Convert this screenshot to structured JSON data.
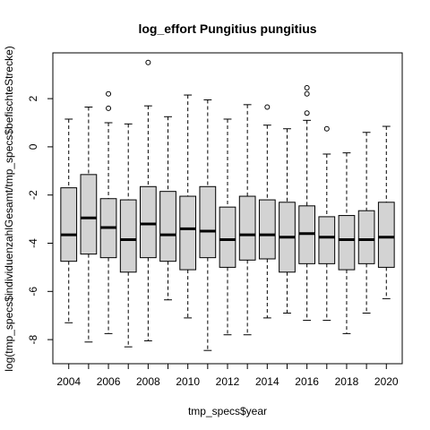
{
  "chart_data": {
    "type": "boxplot",
    "title": "log_effort Pungitius pungitius",
    "xlabel": "tmp_specs$year",
    "ylabel": "log(tmp_specs$individuenzahlGesamt/tmp_specs$befischteStrecke)",
    "categories": [
      "2004",
      "2005",
      "2006",
      "2007",
      "2008",
      "2009",
      "2010",
      "2011",
      "2012",
      "2013",
      "2014",
      "2015",
      "2016",
      "2017",
      "2018",
      "2019",
      "2020"
    ],
    "x_tick_labels": [
      "2004",
      "2006",
      "2008",
      "2010",
      "2012",
      "2014",
      "2016",
      "2018",
      "2020"
    ],
    "y_ticks": [
      -8,
      -6,
      -4,
      -2,
      0,
      2
    ],
    "ylim": [
      -9.0,
      3.9
    ],
    "box_color": "#d3d3d3",
    "boxes": [
      {
        "year": "2004",
        "whisker_low": -7.3,
        "q1": -4.75,
        "median": -3.65,
        "q3": -1.7,
        "whisker_high": 1.15,
        "outliers": []
      },
      {
        "year": "2005",
        "whisker_low": -8.1,
        "q1": -4.45,
        "median": -2.95,
        "q3": -1.15,
        "whisker_high": 1.65,
        "outliers": []
      },
      {
        "year": "2006",
        "whisker_low": -7.75,
        "q1": -4.6,
        "median": -3.35,
        "q3": -2.15,
        "whisker_high": 1.0,
        "outliers": [
          1.6,
          2.2
        ]
      },
      {
        "year": "2007",
        "whisker_low": -8.3,
        "q1": -5.2,
        "median": -3.85,
        "q3": -2.2,
        "whisker_high": 0.95,
        "outliers": []
      },
      {
        "year": "2008",
        "whisker_low": -8.05,
        "q1": -4.6,
        "median": -3.2,
        "q3": -1.65,
        "whisker_high": 1.7,
        "outliers": [
          3.5
        ]
      },
      {
        "year": "2009",
        "whisker_low": -6.35,
        "q1": -4.75,
        "median": -3.65,
        "q3": -1.85,
        "whisker_high": 1.25,
        "outliers": []
      },
      {
        "year": "2010",
        "whisker_low": -7.1,
        "q1": -5.1,
        "median": -3.4,
        "q3": -2.05,
        "whisker_high": 2.15,
        "outliers": []
      },
      {
        "year": "2011",
        "whisker_low": -8.45,
        "q1": -4.6,
        "median": -3.5,
        "q3": -1.65,
        "whisker_high": 1.95,
        "outliers": []
      },
      {
        "year": "2012",
        "whisker_low": -7.8,
        "q1": -5.0,
        "median": -3.85,
        "q3": -2.5,
        "whisker_high": 1.15,
        "outliers": []
      },
      {
        "year": "2013",
        "whisker_low": -7.8,
        "q1": -4.7,
        "median": -3.65,
        "q3": -2.05,
        "whisker_high": 1.75,
        "outliers": []
      },
      {
        "year": "2014",
        "whisker_low": -7.1,
        "q1": -4.65,
        "median": -3.65,
        "q3": -2.2,
        "whisker_high": 0.9,
        "outliers": [
          1.65
        ]
      },
      {
        "year": "2015",
        "whisker_low": -6.9,
        "q1": -5.2,
        "median": -3.75,
        "q3": -2.3,
        "whisker_high": 0.75,
        "outliers": []
      },
      {
        "year": "2016",
        "whisker_low": -7.2,
        "q1": -4.85,
        "median": -3.6,
        "q3": -2.45,
        "whisker_high": 1.1,
        "outliers": [
          1.4,
          2.2,
          2.45
        ]
      },
      {
        "year": "2017",
        "whisker_low": -7.2,
        "q1": -4.85,
        "median": -3.75,
        "q3": -2.9,
        "whisker_high": -0.3,
        "outliers": [
          0.75
        ]
      },
      {
        "year": "2018",
        "whisker_low": -7.75,
        "q1": -5.1,
        "median": -3.85,
        "q3": -2.85,
        "whisker_high": -0.25,
        "outliers": []
      },
      {
        "year": "2019",
        "whisker_low": -6.9,
        "q1": -4.85,
        "median": -3.85,
        "q3": -2.65,
        "whisker_high": 0.6,
        "outliers": []
      },
      {
        "year": "2020",
        "whisker_low": -6.3,
        "q1": -5.0,
        "median": -3.75,
        "q3": -2.3,
        "whisker_high": 0.85,
        "outliers": []
      }
    ]
  }
}
